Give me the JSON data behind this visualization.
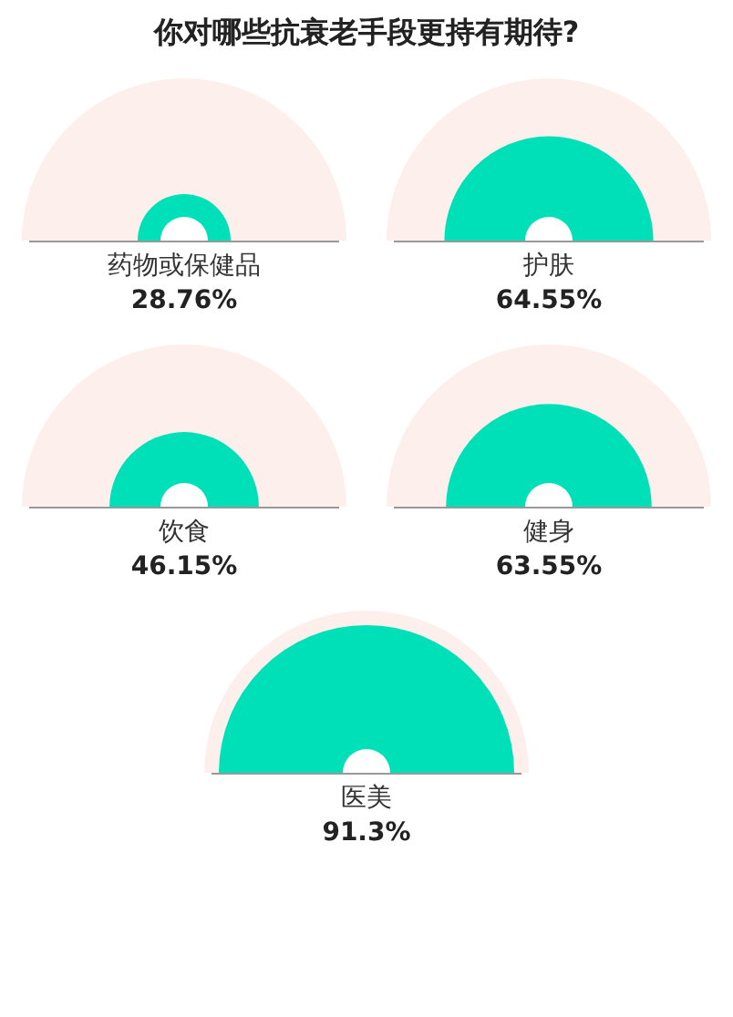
{
  "chart_data": {
    "type": "other",
    "title": "你对哪些抗衰老手段更持有期待?",
    "categories": [
      "药物或保健品",
      "护肤",
      "饮食",
      "健身",
      "医美"
    ],
    "values": [
      28.76,
      64.55,
      46.15,
      63.55,
      91.3
    ],
    "value_labels": [
      "28.76%",
      "64.55%",
      "46.15%",
      "63.55%",
      "91.3%"
    ],
    "color": "#00e0b8"
  }
}
